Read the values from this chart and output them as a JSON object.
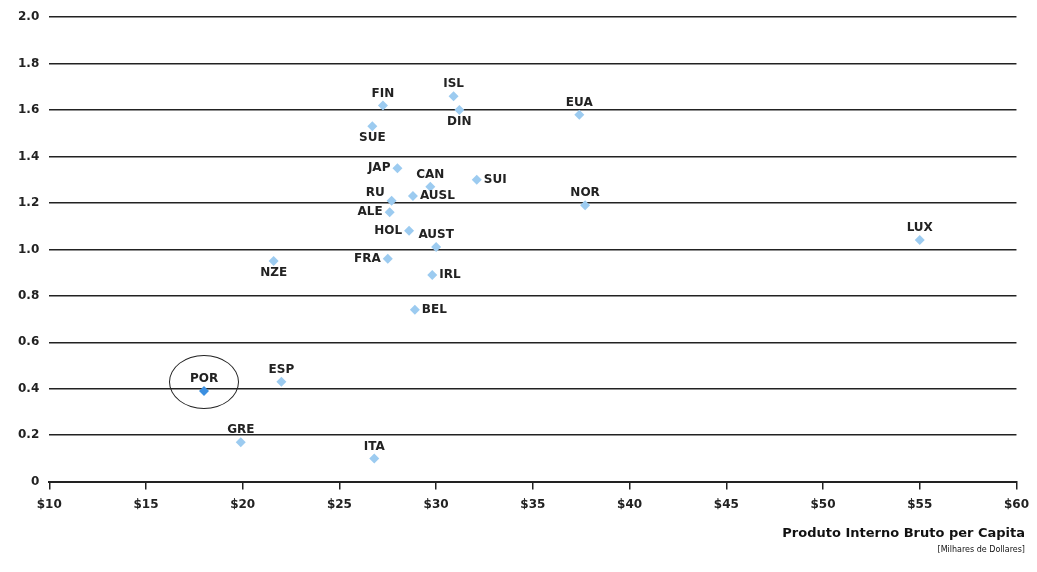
{
  "chart_data": {
    "type": "scatter",
    "xlabel": "Produto Interno Bruto per Capita",
    "x": [
      27.25,
      30.9,
      31.2,
      37.4,
      26.7,
      28.0,
      29.7,
      32.1,
      28.8,
      27.7,
      27.6,
      37.7,
      28.6,
      30.0,
      55.0,
      21.6,
      27.5,
      29.8,
      28.9,
      18.0,
      22.0,
      19.9,
      26.8
    ],
    "values": [
      1.62,
      1.66,
      1.6,
      1.58,
      1.53,
      1.35,
      1.27,
      1.3,
      1.23,
      1.21,
      1.16,
      1.19,
      1.08,
      1.01,
      1.04,
      0.95,
      0.96,
      0.89,
      0.74,
      0.39,
      0.43,
      0.17,
      0.1
    ],
    "colors": [
      "#9ccbf0",
      "#9ccbf0",
      "#9ccbf0",
      "#9ccbf0",
      "#9ccbf0",
      "#9ccbf0",
      "#9ccbf0",
      "#9ccbf0",
      "#9ccbf0",
      "#9ccbf0",
      "#9ccbf0",
      "#9ccbf0",
      "#9ccbf0",
      "#9ccbf0",
      "#9ccbf0",
      "#9ccbf0",
      "#9ccbf0",
      "#9ccbf0",
      "#9ccbf0",
      "#3b8fe0",
      "#9ccbf0",
      "#9ccbf0",
      "#9ccbf0"
    ],
    "marker": "diamond",
    "xlim": [
      10,
      60
    ],
    "xticks": [
      {
        "value": 10,
        "label": "$10"
      },
      {
        "value": 15,
        "label": "$15"
      },
      {
        "value": 20,
        "label": "$20"
      },
      {
        "value": 25,
        "label": "$25"
      },
      {
        "value": 30,
        "label": "$30"
      },
      {
        "value": 35,
        "label": "$35"
      },
      {
        "value": 40,
        "label": "$40"
      },
      {
        "value": 45,
        "label": "$45"
      },
      {
        "value": 50,
        "label": "$50"
      },
      {
        "value": 55,
        "label": "$55"
      },
      {
        "value": 60,
        "label": "$60"
      }
    ],
    "ylim": [
      0,
      2
    ],
    "yticks": [
      0,
      0.2,
      0.4,
      0.6,
      0.8,
      {
        "value": 1,
        "label": "1.0"
      },
      1.2,
      1.4,
      1.6,
      1.8,
      {
        "value": 2,
        "label": "2.0"
      }
    ],
    "grid": "y",
    "legend": false,
    "annotations": [
      {
        "text": "FIN",
        "x": 27.25,
        "y": 1.62
      },
      {
        "text": "ISL",
        "x": 30.9,
        "y": 1.66
      },
      {
        "text": "DIN",
        "x": 31.2,
        "y": 1.6
      },
      {
        "text": "EUA",
        "x": 37.4,
        "y": 1.58
      },
      {
        "text": "SUE",
        "x": 26.7,
        "y": 1.53
      },
      {
        "text": "JAP",
        "x": 28.0,
        "y": 1.35
      },
      {
        "text": "CAN",
        "x": 29.7,
        "y": 1.27
      },
      {
        "text": "SUI",
        "x": 32.1,
        "y": 1.3
      },
      {
        "text": "AUSL",
        "x": 28.8,
        "y": 1.23
      },
      {
        "text": "RU",
        "x": 27.7,
        "y": 1.21
      },
      {
        "text": "ALE",
        "x": 27.6,
        "y": 1.16
      },
      {
        "text": "NOR",
        "x": 37.7,
        "y": 1.19
      },
      {
        "text": "HOL",
        "x": 28.6,
        "y": 1.08
      },
      {
        "text": "AUST",
        "x": 30.0,
        "y": 1.01
      },
      {
        "text": "LUX",
        "x": 55.0,
        "y": 1.04
      },
      {
        "text": "NZE",
        "x": 21.6,
        "y": 0.95
      },
      {
        "text": "FRA",
        "x": 27.5,
        "y": 0.96
      },
      {
        "text": "IRL",
        "x": 29.8,
        "y": 0.89
      },
      {
        "text": "BEL",
        "x": 28.9,
        "y": 0.74
      },
      {
        "text": "POR",
        "x": 18.0,
        "y": 0.39
      },
      {
        "text": "ESP",
        "x": 22.0,
        "y": 0.43
      },
      {
        "text": "GRE",
        "x": 19.9,
        "y": 0.17
      },
      {
        "text": "ITA",
        "x": 26.8,
        "y": 0.1
      },
      "[Milhares de Dollares]"
    ]
  }
}
